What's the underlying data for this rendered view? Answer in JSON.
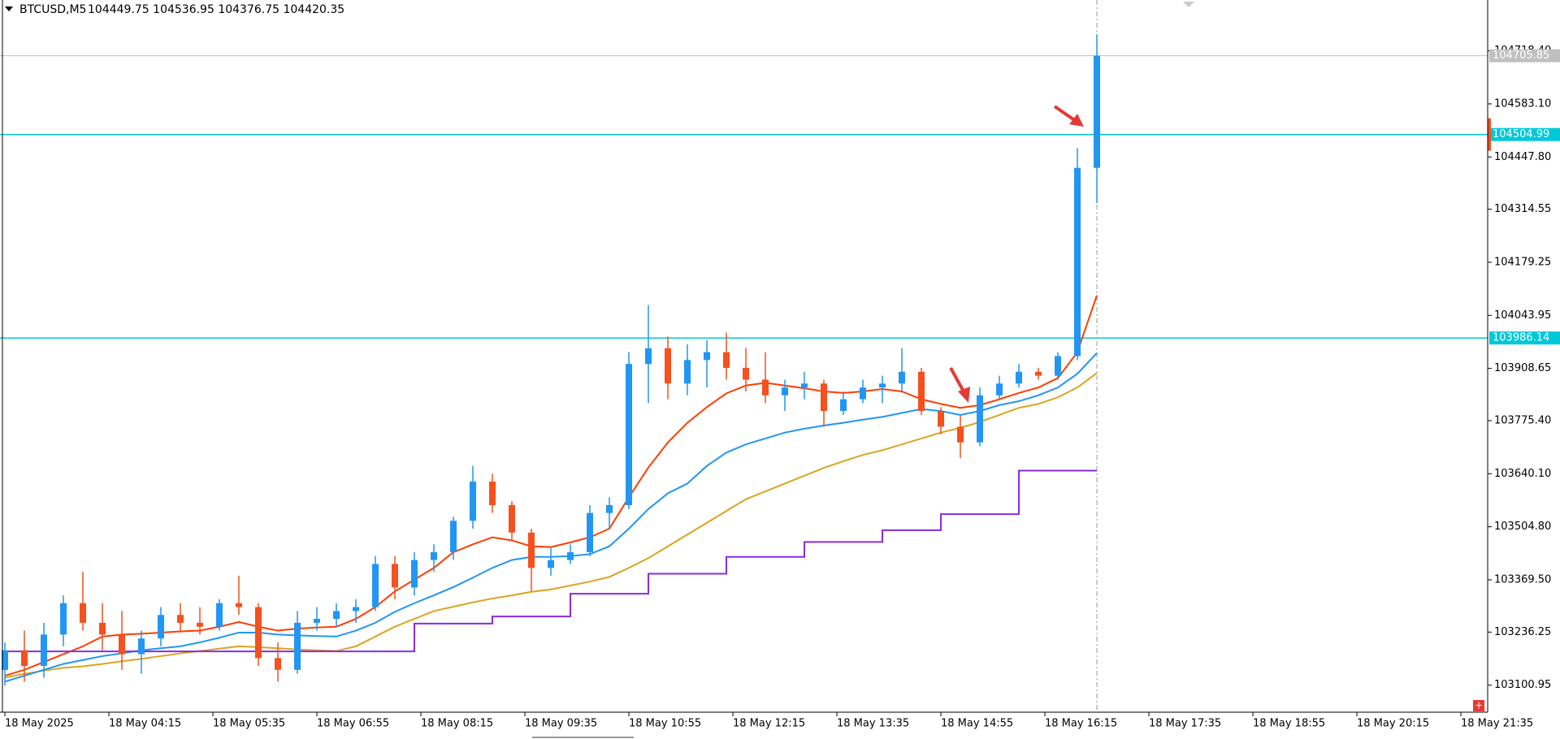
{
  "chart_data": {
    "type": "candlestick",
    "title": "BTCUSD,M5",
    "subtitle": "104449.75 104536.95 104376.75 104420.35",
    "up_color": "#2196f3",
    "down_color": "#f4511e",
    "open": [
      103140,
      103190,
      103150,
      103230,
      103310,
      103260,
      103230,
      103180,
      103220,
      103280,
      103260,
      103250,
      103310,
      103300,
      103170,
      103140,
      103260,
      103270,
      103290,
      103300,
      103410,
      103350,
      103420,
      103440,
      103520,
      103620,
      103560,
      103490,
      103400,
      103420,
      103440,
      103540,
      103560,
      103920,
      103960,
      103870,
      103930,
      103950,
      103910,
      103880,
      103840,
      103860,
      103870,
      103800,
      103830,
      103860,
      103870,
      103900,
      103800,
      103760,
      103720,
      103840,
      103870,
      103900,
      103890,
      103940,
      104420
    ],
    "high": [
      103210,
      103240,
      103260,
      103330,
      103390,
      103310,
      103290,
      103240,
      103300,
      103310,
      103300,
      103320,
      103380,
      103310,
      103210,
      103290,
      103300,
      103310,
      103320,
      103430,
      103430,
      103440,
      103460,
      103530,
      103660,
      103640,
      103570,
      103500,
      103450,
      103460,
      103560,
      103580,
      103950,
      104070,
      103990,
      103970,
      103980,
      104000,
      103960,
      103950,
      103880,
      103900,
      103880,
      103850,
      103880,
      103890,
      103960,
      103910,
      103810,
      103790,
      103860,
      103890,
      103920,
      103910,
      103950,
      104470,
      104760
    ],
    "low": [
      103100,
      103110,
      103120,
      103200,
      103240,
      103190,
      103140,
      103130,
      103200,
      103240,
      103230,
      103240,
      103280,
      103150,
      103110,
      103130,
      103240,
      103250,
      103260,
      103290,
      103320,
      103330,
      103390,
      103420,
      103500,
      103540,
      103470,
      103340,
      103380,
      103410,
      103430,
      103500,
      103550,
      103820,
      103830,
      103840,
      103860,
      103880,
      103850,
      103820,
      103800,
      103830,
      103760,
      103790,
      103820,
      103820,
      103850,
      103790,
      103740,
      103680,
      103710,
      103830,
      103860,
      103880,
      103880,
      103930,
      104330
    ],
    "close": [
      103190,
      103150,
      103230,
      103310,
      103260,
      103230,
      103180,
      103220,
      103280,
      103260,
      103250,
      103310,
      103300,
      103170,
      103140,
      103260,
      103270,
      103290,
      103300,
      103410,
      103350,
      103420,
      103440,
      103520,
      103620,
      103560,
      103490,
      103400,
      103420,
      103440,
      103540,
      103560,
      103920,
      103960,
      103870,
      103930,
      103950,
      103910,
      103880,
      103840,
      103860,
      103870,
      103800,
      103830,
      103860,
      103870,
      103900,
      103800,
      103760,
      103720,
      103840,
      103870,
      103900,
      103890,
      103940,
      104420,
      104706
    ],
    "lines": [
      {
        "color": "#daa520",
        "values": [
          103120,
          103130,
          103138,
          103145,
          103149,
          103155,
          103162,
          103168,
          103175,
          103182,
          103188,
          103194,
          103200,
          103198,
          103195,
          103192,
          103190,
          103188,
          103200,
          103225,
          103250,
          103270,
          103290,
          103301,
          103312,
          103322,
          103330,
          103339,
          103345,
          103355,
          103365,
          103377,
          103400,
          103425,
          103455,
          103485,
          103515,
          103545,
          103575,
          103595,
          103615,
          103635,
          103655,
          103672,
          103688,
          103700,
          103715,
          103730,
          103745,
          103757,
          103772,
          103790,
          103808,
          103818,
          103835,
          103860,
          103897
        ]
      },
      {
        "color": "#2196f3",
        "values": [
          103110,
          103125,
          103140,
          103155,
          103165,
          103175,
          103182,
          103190,
          103195,
          103200,
          103210,
          103222,
          103235,
          103235,
          103230,
          103228,
          103226,
          103225,
          103240,
          103260,
          103288,
          103310,
          103330,
          103351,
          103375,
          103400,
          103420,
          103428,
          103428,
          103430,
          103435,
          103455,
          103500,
          103550,
          103590,
          103615,
          103660,
          103694,
          103715,
          103730,
          103745,
          103755,
          103763,
          103770,
          103778,
          103785,
          103795,
          103805,
          103800,
          103790,
          103800,
          103815,
          103825,
          103840,
          103860,
          103895,
          103948
        ]
      },
      {
        "color": "#ff3d00",
        "values": [
          103125,
          103140,
          103160,
          103180,
          103200,
          103225,
          103230,
          103232,
          103235,
          103238,
          103240,
          103250,
          103262,
          103250,
          103240,
          103245,
          103248,
          103250,
          103270,
          103300,
          103340,
          103370,
          103400,
          103440,
          103460,
          103478,
          103470,
          103455,
          103453,
          103465,
          103478,
          103500,
          103580,
          103656,
          103720,
          103770,
          103810,
          103845,
          103865,
          103872,
          103865,
          103858,
          103850,
          103846,
          103850,
          103856,
          103850,
          103830,
          103818,
          103808,
          103815,
          103830,
          103846,
          103860,
          103884,
          103950,
          104095
        ]
      },
      {
        "color": "#8a2be2",
        "step": true,
        "values": [
          103187,
          103187,
          103187,
          103187,
          103187,
          103187,
          103187,
          103187,
          103187,
          103187,
          103187,
          103187,
          103187,
          103187,
          103187,
          103187,
          103187,
          103187,
          103187,
          103187,
          103187,
          103258,
          103258,
          103258,
          103258,
          103276,
          103276,
          103276,
          103276,
          103334,
          103334,
          103334,
          103334,
          103385,
          103385,
          103385,
          103385,
          103428,
          103428,
          103428,
          103428,
          103466,
          103466,
          103466,
          103466,
          103496,
          103496,
          103496,
          103537,
          103537,
          103537,
          103537,
          103648,
          103648,
          103648,
          103648,
          103648
        ]
      }
    ],
    "hlines": [
      {
        "value": 104504.99,
        "color": "#00c8d8"
      },
      {
        "value": 103986.14,
        "color": "#00c8d8"
      }
    ],
    "current_price": 104705.85,
    "ylim": [
      103032,
      104848
    ],
    "yticks": [
      103100.95,
      103236.25,
      {
        "value": 103369.5,
        "label": "103369.50"
      },
      {
        "value": 103504.8,
        "label": "103504.80"
      },
      {
        "value": 103640.1,
        "label": "103640.10"
      },
      {
        "value": 103775.4,
        "label": "103775.40"
      },
      103908.65,
      104043.95,
      104179.25,
      104314.55,
      {
        "value": 104447.8,
        "label": "104447.80"
      },
      {
        "value": 104583.1,
        "label": "104583.10"
      },
      {
        "value": 104718.4,
        "label": "104718.40"
      }
    ],
    "time_labels": [
      "18 May 2025",
      "18 May 04:15",
      "18 May 05:35",
      "18 May 06:55",
      "18 May 08:15",
      "18 May 09:35",
      "18 May 10:55",
      "18 May 12:15",
      "18 May 13:35",
      "18 May 14:55",
      "18 May 16:15",
      "18 May 17:35",
      "18 May 18:55",
      "18 May 20:15",
      "18 May 21:35"
    ]
  }
}
